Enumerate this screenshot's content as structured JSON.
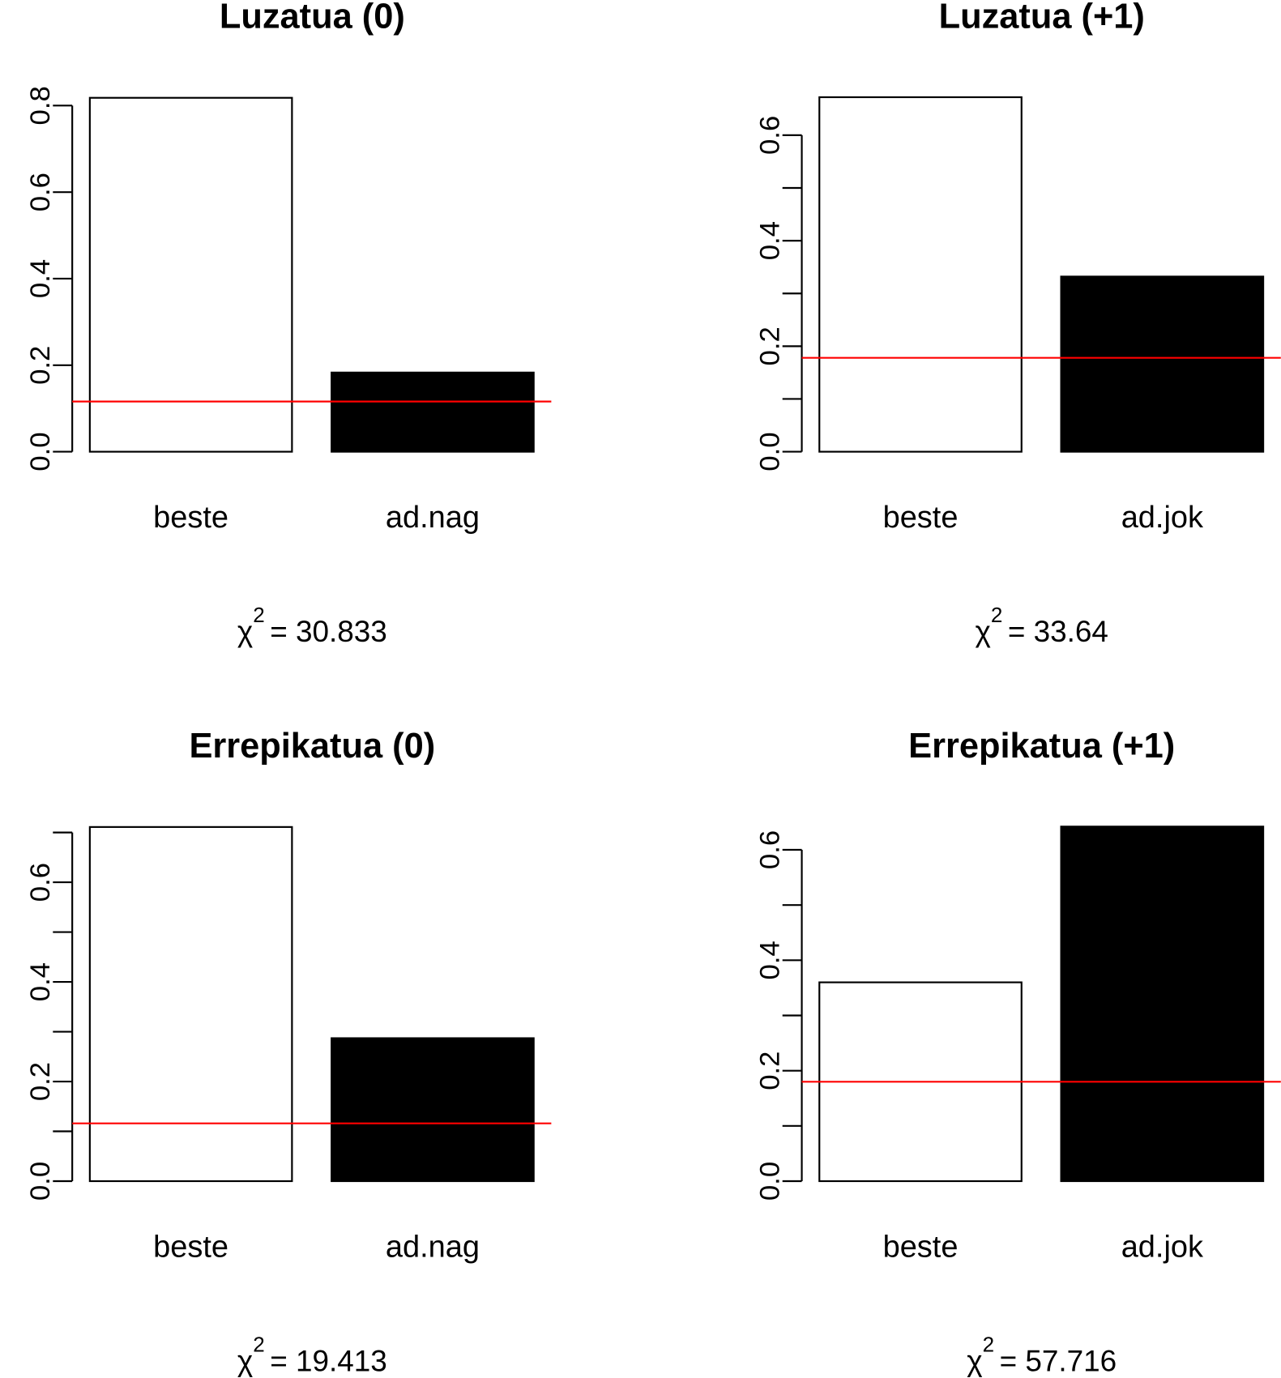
{
  "chart_data": [
    {
      "type": "bar",
      "title": "Luzatua (0)",
      "categories": [
        "beste",
        "ad.nag"
      ],
      "values": [
        0.818,
        0.183
      ],
      "colors": [
        "#ffffff",
        "#000000"
      ],
      "ylim": [
        0,
        0.845
      ],
      "yticks": [
        {
          "value": 0,
          "label": "0.0"
        },
        {
          "value": 0.2,
          "label": "0.2"
        },
        {
          "value": 0.4,
          "label": "0.4"
        },
        {
          "value": 0.6,
          "label": "0.6"
        },
        {
          "value": 0.8,
          "label": "0.8"
        }
      ],
      "hline": 0.116,
      "hline_color": "#ff0000",
      "chi_label": {
        "symbol": "χ",
        "power": "2",
        "value": "= 30.833"
      }
    },
    {
      "type": "bar",
      "title": "Luzatua (+1)",
      "categories": [
        "beste",
        "ad.jok"
      ],
      "values": [
        0.672,
        0.332
      ],
      "colors": [
        "#ffffff",
        "#000000"
      ],
      "ylim": [
        0,
        0.693
      ],
      "yticks": [
        {
          "value": 0,
          "label": "0.0"
        },
        {
          "value": 0.2,
          "label": "0.2"
        },
        {
          "value": 0.4,
          "label": "0.4"
        },
        {
          "value": 0.6,
          "label": "0.6"
        }
      ],
      "yminor_ticks": [
        0.1,
        0.3,
        0.5
      ],
      "hline": 0.178,
      "hline_color": "#ff0000",
      "chi_label": {
        "symbol": "χ",
        "power": "2",
        "value": "= 33.64"
      }
    },
    {
      "type": "bar",
      "title": "Errepikatua (0)",
      "categories": [
        "beste",
        "ad.nag"
      ],
      "values": [
        0.711,
        0.287
      ],
      "colors": [
        "#ffffff",
        "#000000"
      ],
      "ylim": [
        0,
        0.734
      ],
      "yticks": [
        {
          "value": 0,
          "label": "0.0"
        },
        {
          "value": 0.2,
          "label": "0.2"
        },
        {
          "value": 0.4,
          "label": "0.4"
        },
        {
          "value": 0.6,
          "label": "0.6"
        }
      ],
      "yminor_ticks": [
        0.1,
        0.3,
        0.5,
        0.7
      ],
      "hline": 0.116,
      "hline_color": "#ff0000",
      "chi_label": {
        "symbol": "χ",
        "power": "2",
        "value": "= 19.413"
      }
    },
    {
      "type": "bar",
      "title": "Errepikatua (+1)",
      "categories": [
        "beste",
        "ad.jok"
      ],
      "values": [
        0.36,
        0.642
      ],
      "colors": [
        "#ffffff",
        "#000000"
      ],
      "ylim": [
        0,
        0.662
      ],
      "yticks": [
        {
          "value": 0,
          "label": "0.0"
        },
        {
          "value": 0.2,
          "label": "0.2"
        },
        {
          "value": 0.4,
          "label": "0.4"
        },
        {
          "value": 0.6,
          "label": "0.6"
        }
      ],
      "yminor_ticks": [
        0.1,
        0.3,
        0.5
      ],
      "hline": 0.18,
      "hline_color": "#ff0000",
      "chi_label": {
        "symbol": "χ",
        "power": "2",
        "value": "= 57.716"
      }
    }
  ]
}
